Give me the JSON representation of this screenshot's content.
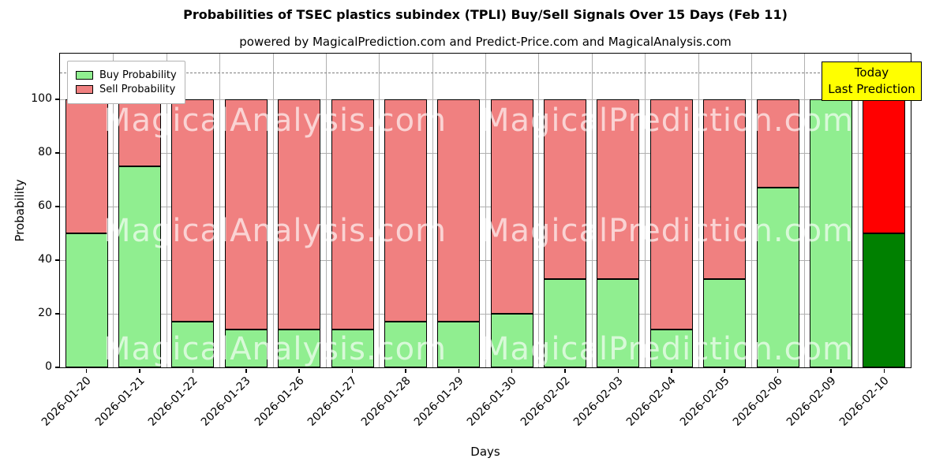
{
  "title": "Probabilities of TSEC plastics subindex (TPLI) Buy/Sell Signals Over 15 Days (Feb 11)",
  "subtitle": "powered by MagicalPrediction.com and Predict-Price.com and MagicalAnalysis.com",
  "legend": {
    "buy_label": "Buy Probability",
    "sell_label": "Sell Probability"
  },
  "annotation": {
    "line1": "Today",
    "line2": "Last Prediction"
  },
  "watermarks": [
    "MagicalAnalysis.com",
    "MagicalPrediction.com"
  ],
  "colors": {
    "buy": "#90ee90",
    "sell": "#f08080",
    "today_buy": "#008000",
    "today_sell": "#ff0000",
    "annotation_bg": "#ffff00",
    "grid": "#b0b0b0",
    "dashed_line": "#7f7f7f"
  },
  "chart_data": {
    "type": "bar",
    "stacked": true,
    "title": "Probabilities of TSEC plastics subindex (TPLI) Buy/Sell Signals Over 15 Days (Feb 11)",
    "xlabel": "Days",
    "ylabel": "Probability",
    "ylim": [
      0,
      117
    ],
    "yticks": [
      0,
      20,
      40,
      60,
      80,
      100
    ],
    "dashed_line_y": 110,
    "grid": true,
    "legend_position": "upper left",
    "categories": [
      "2026-01-20",
      "2026-01-21",
      "2026-01-22",
      "2026-01-23",
      "2026-01-26",
      "2026-01-27",
      "2026-01-28",
      "2026-01-29",
      "2026-01-30",
      "2026-02-02",
      "2026-02-03",
      "2026-02-04",
      "2026-02-05",
      "2026-02-06",
      "2026-02-09",
      "2026-02-10"
    ],
    "series": [
      {
        "name": "Buy Probability",
        "color": "#90ee90",
        "values": [
          50,
          75,
          17,
          14,
          14,
          14,
          17,
          17,
          20,
          33,
          33,
          14,
          33,
          67,
          100,
          50
        ]
      },
      {
        "name": "Sell Probability",
        "color": "#f08080",
        "values": [
          50,
          25,
          83,
          86,
          86,
          86,
          83,
          83,
          80,
          67,
          67,
          86,
          67,
          33,
          0,
          50
        ]
      }
    ],
    "today_index": 15
  }
}
